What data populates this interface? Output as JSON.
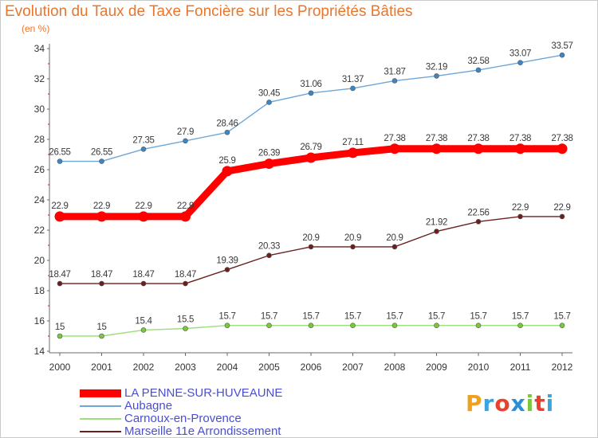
{
  "header": {
    "title": "Evolution du Taux de Taxe Foncière sur les Propriétés Bâties",
    "unit": "(en %)"
  },
  "brand": {
    "letters": [
      "P",
      "r",
      "o",
      "x",
      "i",
      "t",
      "i"
    ],
    "colors": [
      "#f0a020",
      "#3aa5dc",
      "#e8422f",
      "#2a8fd6",
      "#7cc83c",
      "#e8422f",
      "#3aa5dc"
    ]
  },
  "chart_data": {
    "type": "line",
    "x": [
      "2000",
      "2001",
      "2002",
      "2003",
      "2004",
      "2005",
      "2006",
      "2007",
      "2008",
      "2009",
      "2010",
      "2011",
      "2012"
    ],
    "ylim": [
      14,
      34
    ],
    "yticks": [
      14,
      16,
      18,
      20,
      22,
      24,
      26,
      28,
      30,
      32,
      34
    ],
    "grid": false,
    "legend_position": "bottom-left",
    "series": [
      {
        "name": "Aubagne",
        "color": "#6fa6d6",
        "dot": "#3b86c6",
        "values": [
          26.55,
          26.55,
          27.35,
          27.9,
          28.46,
          30.45,
          31.06,
          31.37,
          31.87,
          32.19,
          32.58,
          33.07,
          33.57
        ],
        "labels": [
          "26.55",
          "26.55",
          "27.35",
          "27.9",
          "28.46",
          "30.45",
          "31.06",
          "31.37",
          "31.87",
          "32.19",
          "32.58",
          "33.07",
          "33.57"
        ]
      },
      {
        "name": "LA PENNE-SUR-HUVEAUNE",
        "color": "#ff0000",
        "dot": "#ff0000",
        "values": [
          22.9,
          22.9,
          22.9,
          22.9,
          25.9,
          26.39,
          26.79,
          27.11,
          27.38,
          27.38,
          27.38,
          27.38,
          27.38
        ],
        "labels": [
          "22.9",
          "22.9",
          "22.9",
          "22.9",
          "25.9",
          "26.39",
          "26.79",
          "27.11",
          "27.38",
          "27.38",
          "27.38",
          "27.38",
          "27.38"
        ]
      },
      {
        "name": "Marseille 11e  Arrondissement",
        "color": "#6b1f1f",
        "dot": "#6b1f1f",
        "values": [
          18.47,
          18.47,
          18.47,
          18.47,
          19.39,
          20.33,
          20.9,
          20.9,
          20.9,
          21.92,
          22.56,
          22.9,
          22.9
        ],
        "labels": [
          "18.47",
          "18.47",
          "18.47",
          "18.47",
          "19.39",
          "20.33",
          "20.9",
          "20.9",
          "20.9",
          "21.92",
          "22.56",
          "22.9",
          "22.9"
        ]
      },
      {
        "name": "Carnoux-en-Provence",
        "color": "#9be07a",
        "dot": "#7cc83c",
        "values": [
          15,
          15,
          15.4,
          15.5,
          15.7,
          15.7,
          15.7,
          15.7,
          15.7,
          15.7,
          15.7,
          15.7,
          15.7
        ],
        "labels": [
          "15",
          "15",
          "15.4",
          "15.5",
          "15.7",
          "15.7",
          "15.7",
          "15.7",
          "15.7",
          "15.7",
          "15.7",
          "15.7",
          "15.7"
        ]
      }
    ],
    "legend": [
      {
        "name": "LA PENNE-SUR-HUVEAUNE",
        "color": "#ff0000",
        "thick": true
      },
      {
        "name": "Aubagne",
        "color": "#6fa6d6",
        "thick": false
      },
      {
        "name": "Carnoux-en-Provence",
        "color": "#9be07a",
        "thick": false
      },
      {
        "name": "Marseille 11e  Arrondissement",
        "color": "#6b1f1f",
        "thick": false
      }
    ]
  }
}
